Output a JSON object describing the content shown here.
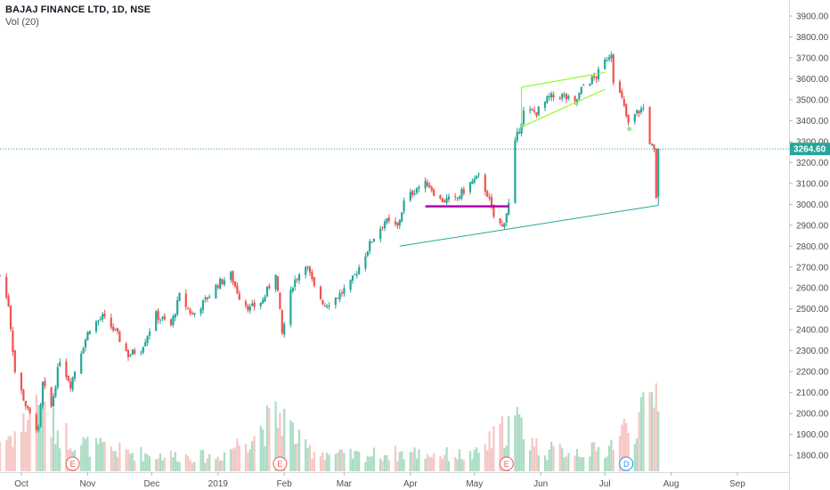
{
  "header": {
    "title": "BAJAJ FINANCE LTD, 1D, NSE",
    "indicator": "Vol (20)"
  },
  "colors": {
    "up": "#26a69a",
    "down": "#ef5350",
    "vol_up": "#a9dcc3",
    "vol_down": "#f5c6c4",
    "price_line": "#26a69a",
    "axis_text": "#505050",
    "channel": "#7cfc00",
    "horizontal_level": "#b000b0",
    "trendline": "#26a69a"
  },
  "chart_data": {
    "type": "candlestick",
    "title": "BAJAJ FINANCE LTD, 1D, NSE",
    "ylim": [
      1730,
      3970
    ],
    "y_ticks": [
      "1800.00",
      "1900.00",
      "2000.00",
      "2100.00",
      "2200.00",
      "2300.00",
      "2400.00",
      "2500.00",
      "2600.00",
      "2700.00",
      "2800.00",
      "2900.00",
      "3000.00",
      "3100.00",
      "3200.00",
      "3300.00",
      "3400.00",
      "3500.00",
      "3600.00",
      "3700.00",
      "3800.00",
      "3900.00"
    ],
    "x_ticks": [
      "Oct",
      "Nov",
      "Dec",
      "2019",
      "Feb",
      "Mar",
      "Apr",
      "May",
      "Jun",
      "Jul",
      "Aug",
      "Sep"
    ],
    "last_price": 3264.6,
    "last_price_label": "3264.60",
    "price_path": [
      [
        "2018-09-21",
        2660
      ],
      [
        "2018-09-25",
        2520
      ],
      [
        "2018-09-28",
        2200
      ],
      [
        "2018-10-04",
        2010
      ],
      [
        "2018-10-09",
        1920
      ],
      [
        "2018-10-11",
        2140
      ],
      [
        "2018-10-15",
        2030
      ],
      [
        "2018-10-19",
        2260
      ],
      [
        "2018-10-24",
        2140
      ],
      [
        "2018-10-29",
        2300
      ],
      [
        "2018-11-02",
        2410
      ],
      [
        "2018-11-08",
        2460
      ],
      [
        "2018-11-14",
        2390
      ],
      [
        "2018-11-20",
        2280
      ],
      [
        "2018-11-26",
        2310
      ],
      [
        "2018-12-03",
        2470
      ],
      [
        "2018-12-10",
        2420
      ],
      [
        "2018-12-14",
        2560
      ],
      [
        "2018-12-20",
        2470
      ],
      [
        "2018-12-26",
        2540
      ],
      [
        "2019-01-01",
        2620
      ],
      [
        "2019-01-07",
        2660
      ],
      [
        "2019-01-11",
        2560
      ],
      [
        "2019-01-16",
        2500
      ],
      [
        "2019-01-22",
        2540
      ],
      [
        "2019-01-28",
        2680
      ],
      [
        "2019-01-31",
        2380
      ],
      [
        "2019-02-05",
        2620
      ],
      [
        "2019-02-11",
        2720
      ],
      [
        "2019-02-15",
        2600
      ],
      [
        "2019-02-20",
        2520
      ],
      [
        "2019-02-26",
        2560
      ],
      [
        "2019-03-04",
        2620
      ],
      [
        "2019-03-08",
        2700
      ],
      [
        "2019-03-14",
        2830
      ],
      [
        "2019-03-20",
        2920
      ],
      [
        "2019-03-26",
        2890
      ],
      [
        "2019-03-29",
        3010
      ],
      [
        "2019-04-04",
        3080
      ],
      [
        "2019-04-09",
        3100
      ],
      [
        "2019-04-15",
        3020
      ],
      [
        "2019-04-22",
        3020
      ],
      [
        "2019-04-29",
        3100
      ],
      [
        "2019-05-03",
        3130
      ],
      [
        "2019-05-07",
        3050
      ],
      [
        "2019-05-10",
        2940
      ],
      [
        "2019-05-14",
        2890
      ],
      [
        "2019-05-17",
        3000
      ],
      [
        "2019-05-20",
        3290
      ],
      [
        "2019-05-24",
        3440
      ],
      [
        "2019-05-30",
        3440
      ],
      [
        "2019-06-05",
        3510
      ],
      [
        "2019-06-11",
        3520
      ],
      [
        "2019-06-17",
        3480
      ],
      [
        "2019-06-21",
        3570
      ],
      [
        "2019-06-27",
        3610
      ],
      [
        "2019-07-02",
        3700
      ],
      [
        "2019-07-04",
        3730
      ],
      [
        "2019-07-05",
        3600
      ],
      [
        "2019-07-09",
        3500
      ],
      [
        "2019-07-12",
        3380
      ],
      [
        "2019-07-16",
        3440
      ],
      [
        "2019-07-19",
        3460
      ],
      [
        "2019-07-22",
        3300
      ],
      [
        "2019-07-24",
        3250
      ],
      [
        "2019-07-25",
        3020
      ],
      [
        "2019-07-26",
        3264.6
      ]
    ],
    "volume_path": [
      [
        "2018-09-21",
        0.3
      ],
      [
        "2018-10-01",
        0.4
      ],
      [
        "2018-10-05",
        0.6
      ],
      [
        "2018-10-10",
        0.7
      ],
      [
        "2018-10-15",
        0.45
      ],
      [
        "2018-10-22",
        0.35
      ],
      [
        "2018-11-01",
        0.25
      ],
      [
        "2018-11-15",
        0.2
      ],
      [
        "2018-12-01",
        0.16
      ],
      [
        "2019-01-01",
        0.14
      ],
      [
        "2019-01-31",
        0.55
      ],
      [
        "2019-02-10",
        0.22
      ],
      [
        "2019-03-01",
        0.15
      ],
      [
        "2019-04-01",
        0.18
      ],
      [
        "2019-05-01",
        0.15
      ],
      [
        "2019-05-20",
        0.5
      ],
      [
        "2019-06-01",
        0.2
      ],
      [
        "2019-07-01",
        0.2
      ],
      [
        "2019-07-10",
        0.4
      ],
      [
        "2019-07-20",
        0.55
      ],
      [
        "2019-07-26",
        0.85
      ]
    ],
    "earnings_markers": [
      {
        "date": "2018-10-25",
        "label": "E"
      },
      {
        "date": "2019-01-30",
        "label": "E"
      },
      {
        "date": "2019-05-16",
        "label": "E"
      }
    ],
    "dividend_markers": [
      {
        "date": "2019-07-11",
        "label": "D"
      }
    ],
    "drawings": {
      "rising_channel": {
        "upper": [
          [
            "2019-05-23",
            3560
          ],
          [
            "2019-07-01",
            3630
          ]
        ],
        "lower": [
          [
            "2019-05-23",
            3370
          ],
          [
            "2019-07-01",
            3550
          ]
        ]
      },
      "horizontal_level": {
        "from": "2019-04-08",
        "to": "2019-05-17",
        "price": 2990
      },
      "trendline": {
        "from": [
          "2019-03-27",
          2800
        ],
        "to": [
          "2019-07-26",
          2995
        ]
      }
    },
    "grid": false,
    "legend": "top-left"
  }
}
